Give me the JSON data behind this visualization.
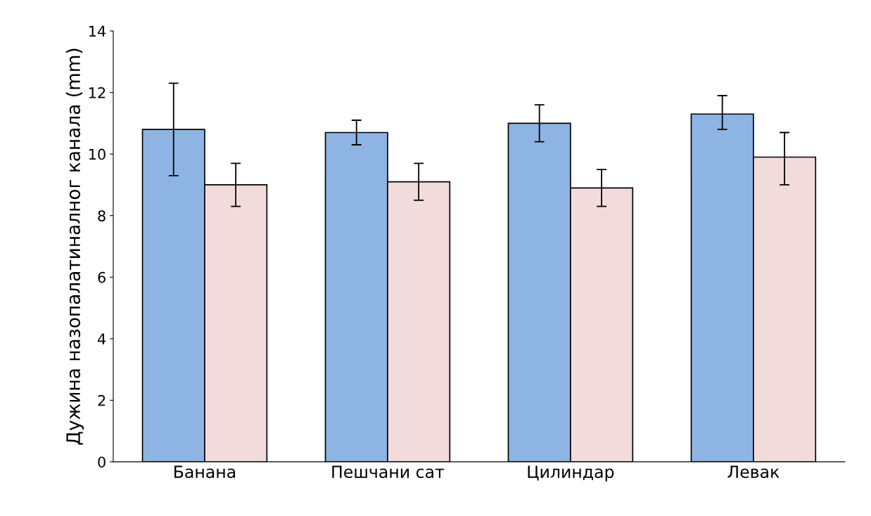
{
  "chart_data": {
    "type": "bar",
    "ylabel": "Дужина назопалатиналног канала (mm)",
    "categories": [
      "Банана",
      "Пешчани сат",
      "Цилиндар",
      "Левак"
    ],
    "series": [
      {
        "color": "#8db4e2",
        "values": [
          10.8,
          10.7,
          11.0,
          11.3
        ],
        "errors": [
          [
            9.3,
            12.3
          ],
          [
            10.3,
            11.1
          ],
          [
            10.4,
            11.6
          ],
          [
            10.8,
            11.9
          ]
        ]
      },
      {
        "color": "#f2dcdb",
        "values": [
          9.0,
          9.1,
          8.9,
          9.9
        ],
        "errors": [
          [
            8.3,
            9.7
          ],
          [
            8.5,
            9.7
          ],
          [
            8.3,
            9.5
          ],
          [
            9.0,
            10.7
          ]
        ]
      }
    ],
    "ylim": [
      0,
      14
    ],
    "yticks": [
      0,
      2,
      4,
      6,
      8,
      10,
      12,
      14
    ],
    "grid": false,
    "legend": false
  }
}
